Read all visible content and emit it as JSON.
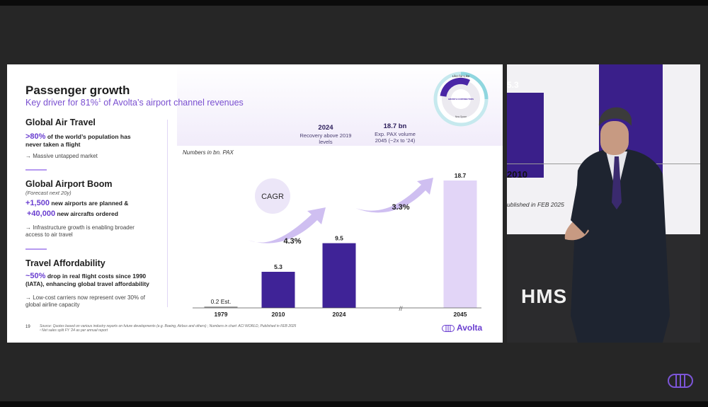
{
  "slide": {
    "title": "Passenger growth",
    "subtitle_pre": "Key driver for 81%",
    "subtitle_sup": "1",
    "subtitle_post": " of Avolta’s airport channel revenues",
    "sections": [
      {
        "heading": "Global Air Travel",
        "stat1_value": ">80%",
        "stat1_text": " of the world’s population has",
        "stat1_text2": "never taken a flight",
        "bullet": "→ Massive untapped market"
      },
      {
        "heading": "Global Airport Boom",
        "note": "(Forecast next 20y)",
        "stat1_value": "+1,500",
        "stat1_text": " new airports are planned &",
        "stat2_value": "+40,000",
        "stat2_text": " new aircrafts ordered",
        "bullet": "→ Infrastructure growth is enabling broader",
        "bullet2": "access to air travel"
      },
      {
        "heading": "Travel Affordability",
        "stat1_value": "~50%",
        "stat1_text": " drop in real flight costs since 1990",
        "stat1_text2": "(IATA), enhancing global travel affordability",
        "bullet": "→ Low-cost carriers now represent over 30% of",
        "bullet2": "global airline capacity"
      }
    ],
    "callout_2024_head": "2024",
    "callout_2024_l1": "Recovery above 2019",
    "callout_2024_l2": "levels",
    "callout_2045_head": "18.7 bn",
    "callout_2045_l1": "Exp. PAX volume",
    "callout_2045_l2": "2045 (~2x to ’24)",
    "axis_note": "Numbers in bn. PAX",
    "cagr_label": "CAGR",
    "cagr_1": "4.3%",
    "cagr_2": "3.3%",
    "axis_break": "//",
    "page_number": "19",
    "source_l1": "Source: Quotes based on various industry reports on future developments (e.g. Boeing, Airbus and others) ; Numbers in chart: ACI WORLD, Published in FEB 2025",
    "source_l2": "¹ Net sales split FY ’24 as per annual report",
    "brand": "Avolta",
    "wheel_top": "Like-for-Like",
    "wheel_center": "GROWTH CONTRIBUTORS",
    "wheel_bottom": "New Space"
  },
  "chart_data": {
    "type": "bar",
    "categories": [
      "1979",
      "2010",
      "2024",
      "2045"
    ],
    "values": [
      0.2,
      5.3,
      9.5,
      18.7
    ],
    "value_labels": [
      "0.2 Est.",
      "5.3",
      "9.5",
      "18.7"
    ],
    "colors": [
      "#3f2397",
      "#3f2397",
      "#3f2397",
      "#e2d5f7"
    ],
    "ylabel": "Numbers in bn. PAX",
    "ylim": [
      0,
      18.7
    ]
  },
  "stage": {
    "screen_value": "5.3",
    "screen_year": "2010",
    "screen_source": "ublished in FEB 2025",
    "sign_text": "HMS"
  },
  "colors": {
    "accent": "#6a3ed0",
    "bar_dark": "#3f2397",
    "bar_light": "#e2d5f7"
  }
}
